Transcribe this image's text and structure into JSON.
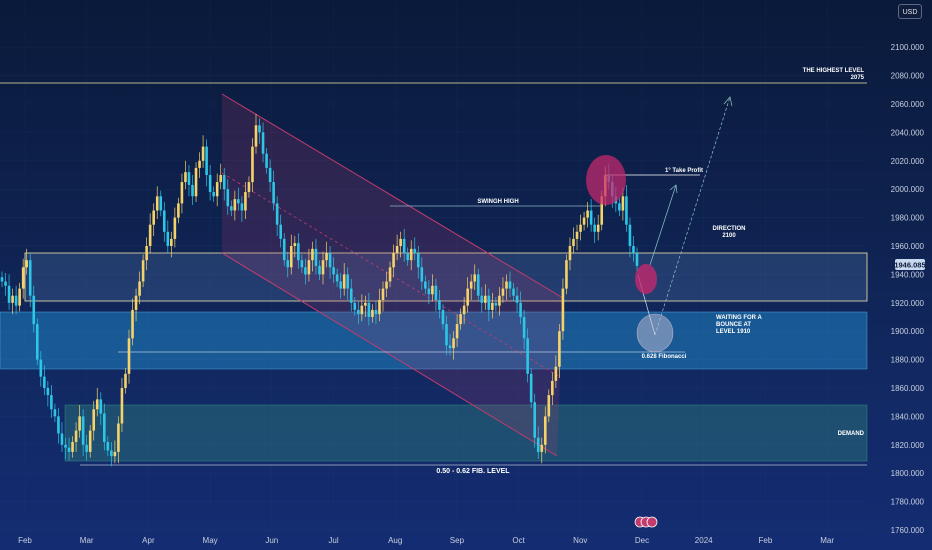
{
  "currency": "USD",
  "colors": {
    "up": "#f5d36a",
    "down": "#2cc6e6",
    "channel": "#c23c6e",
    "zone": "#55b8ff",
    "demand": "#3cae8a",
    "price_badge": "#c8d8ee"
  },
  "current_price": "1946.085",
  "chart_data": {
    "type": "candlestick",
    "title": "",
    "xlabel": "",
    "ylabel": "",
    "ylim": [
      1760,
      2110
    ],
    "y_ticks": [
      "1760.000",
      "1780.000",
      "1800.000",
      "1820.000",
      "1840.000",
      "1860.000",
      "1880.000",
      "1900.000",
      "1920.000",
      "1940.000",
      "1960.000",
      "1980.000",
      "2000.000",
      "2020.000",
      "2040.000",
      "2060.000",
      "2080.000",
      "2100.000"
    ],
    "x_ticks": [
      "Feb",
      "Mar",
      "Apr",
      "May",
      "Jun",
      "Jul",
      "Aug",
      "Sep",
      "Oct",
      "Nov",
      "Dec",
      "2024",
      "Feb",
      "Mar"
    ],
    "series_close": [
      1935,
      1932,
      1920,
      1925,
      1918,
      1930,
      1945,
      1950,
      1925,
      1905,
      1880,
      1868,
      1860,
      1855,
      1845,
      1840,
      1828,
      1820,
      1818,
      1815,
      1822,
      1830,
      1840,
      1820,
      1815,
      1830,
      1845,
      1852,
      1842,
      1822,
      1816,
      1812,
      1815,
      1835,
      1860,
      1870,
      1895,
      1915,
      1925,
      1935,
      1950,
      1960,
      1975,
      1985,
      1995,
      1985,
      1970,
      1960,
      1965,
      1980,
      1990,
      2005,
      2012,
      2003,
      1995,
      2015,
      2020,
      2030,
      2010,
      1998,
      1995,
      2005,
      2010,
      2000,
      1988,
      1985,
      1993,
      1990,
      1985,
      1998,
      2005,
      2030,
      2045,
      2040,
      2025,
      2015,
      2005,
      1990,
      1975,
      1965,
      1950,
      1945,
      1960,
      1962,
      1950,
      1945,
      1940,
      1950,
      1958,
      1946,
      1940,
      1950,
      1955,
      1945,
      1940,
      1935,
      1930,
      1940,
      1930,
      1920,
      1915,
      1912,
      1918,
      1920,
      1910,
      1915,
      1912,
      1922,
      1930,
      1935,
      1945,
      1955,
      1960,
      1965,
      1955,
      1950,
      1958,
      1955,
      1945,
      1935,
      1930,
      1926,
      1932,
      1922,
      1915,
      1905,
      1890,
      1888,
      1895,
      1905,
      1912,
      1918,
      1930,
      1935,
      1940,
      1925,
      1920,
      1925,
      1915,
      1920,
      1918,
      1925,
      1930,
      1935,
      1930,
      1925,
      1920,
      1910,
      1895,
      1870,
      1850,
      1825,
      1815,
      1820,
      1840,
      1855,
      1865,
      1875,
      1900,
      1930,
      1950,
      1960,
      1965,
      1970,
      1975,
      1980,
      1985,
      1975,
      1970,
      1975,
      1995,
      2010,
      2005,
      1995,
      1990,
      1985,
      1995,
      1975,
      1960,
      1955,
      1946
    ]
  },
  "annotations": {
    "highest_level_line1": "THE HIGHEST LEVEL",
    "highest_level_line2": "2075",
    "swing_high": "SWINGH HIGH",
    "take_profit": "1° Take Profit",
    "direction_line1": "DIRECTION",
    "direction_line2": "2100",
    "waiting_line1": "WAITING FOR A",
    "waiting_line2": "BOUNCE AT",
    "waiting_line3": "LEVEL 1910",
    "fibonacci": "0.628 Fibonacci",
    "demand": "DEMAND",
    "fib_level": "0.50 - 0.62 FIB. LEVEL"
  }
}
